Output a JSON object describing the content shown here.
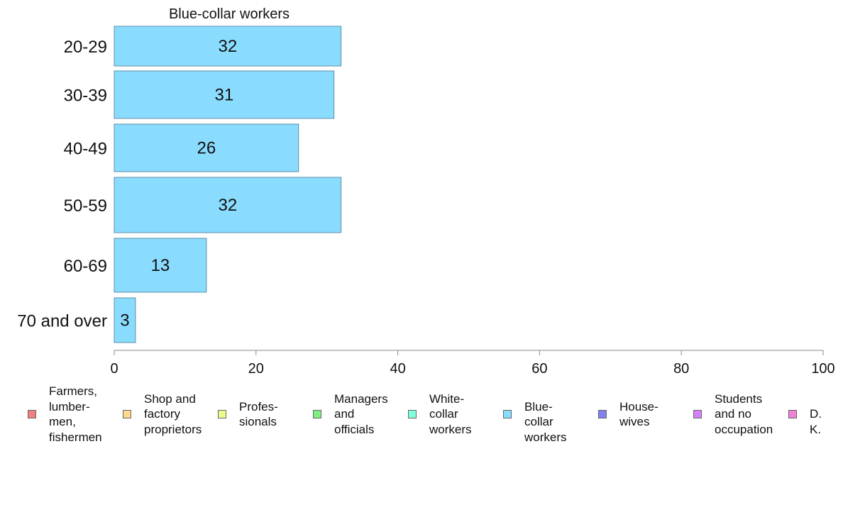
{
  "chart_data": {
    "type": "bar",
    "orientation": "horizontal",
    "title": "Blue-collar workers",
    "categories": [
      "20-29",
      "30-39",
      "40-49",
      "50-59",
      "60-69",
      "70 and over"
    ],
    "values": [
      32,
      31,
      26,
      32,
      13,
      3
    ],
    "bar_color": "#8adcff",
    "bar_border_color": "#5e8fa8",
    "xlim": [
      0,
      100
    ],
    "x_ticks": [
      0,
      20,
      40,
      60,
      80,
      100
    ],
    "grid": false,
    "legend_position": "bottom",
    "legend": [
      {
        "label": "Farmers,\nlumber-\nmen,\nfishermen",
        "color": "#f08080"
      },
      {
        "label": "Shop and\nfactory\nproprietors",
        "color": "#ffd98c"
      },
      {
        "label": "Profes-\nsionals",
        "color": "#e8ff8c"
      },
      {
        "label": "Managers\nand\nofficials",
        "color": "#80ee80"
      },
      {
        "label": "White-\ncollar\nworkers",
        "color": "#80ffdc"
      },
      {
        "label": "Blue-collar\nworkers",
        "color": "#8adcff"
      },
      {
        "label": "House-\nwives",
        "color": "#8080f0"
      },
      {
        "label": "Students\nand no\noccupation",
        "color": "#d880f8"
      },
      {
        "label": "D. K.",
        "color": "#f080d8"
      }
    ]
  }
}
